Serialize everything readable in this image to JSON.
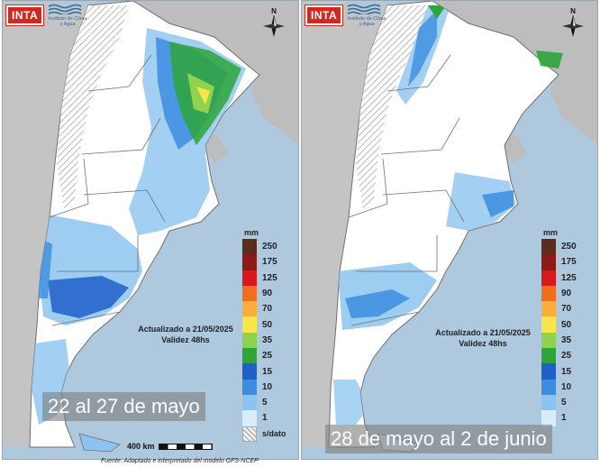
{
  "logos": {
    "inta": "INTA",
    "institute": "Instituto de Clima y Agua"
  },
  "compass": {
    "north": "N",
    "icon": "compass-rose-icon"
  },
  "legend": {
    "unit": "mm",
    "classes": [
      {
        "label": "250",
        "color": "#5a2d1e"
      },
      {
        "label": "175",
        "color": "#8b1a1a"
      },
      {
        "label": "125",
        "color": "#d7191c"
      },
      {
        "label": "90",
        "color": "#f46d1e"
      },
      {
        "label": "70",
        "color": "#fdae3a"
      },
      {
        "label": "50",
        "color": "#f6e84a"
      },
      {
        "label": "35",
        "color": "#8fd24b"
      },
      {
        "label": "25",
        "color": "#2ea43a"
      },
      {
        "label": "15",
        "color": "#1f5fc8"
      },
      {
        "label": "10",
        "color": "#3c8de0"
      },
      {
        "label": "5",
        "color": "#8cc4ef"
      },
      {
        "label": "1",
        "color": "#d8ecfb"
      }
    ],
    "no_data_label": "s/dato"
  },
  "panels": [
    {
      "period": "22 al 27 de mayo",
      "updated": "Actualizado a 21/05/2025",
      "validity": "Validez 48hs"
    },
    {
      "period": "28 de mayo al 2 de junio",
      "updated": "Actualizado a 21/05/2025",
      "validity": "Validez 48hs"
    }
  ],
  "scale_label": "400 km",
  "source": "Fuente: Adaptado e interpretado del modelo GFS-NCEP",
  "colors": {
    "ocean": "#aec8de",
    "land_outside": "#bdbdbd",
    "land": "#ffffff",
    "border": "#707070"
  }
}
